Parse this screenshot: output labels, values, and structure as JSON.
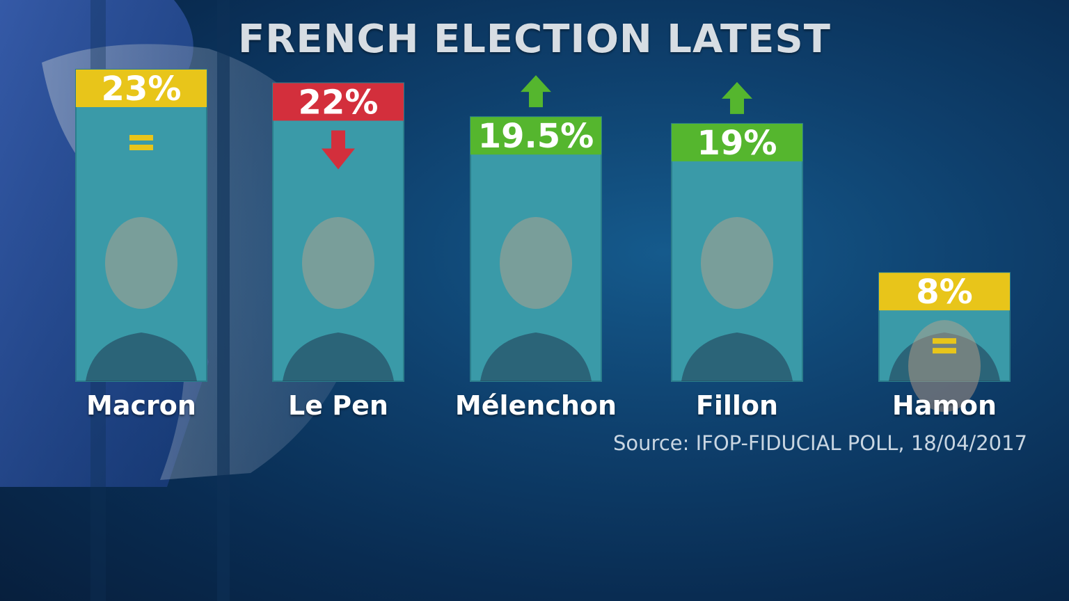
{
  "title": "FRENCH ELECTION LATEST",
  "source": "Source:  IFOP-FIDUCIAL POLL, 18/04/2017",
  "colors": {
    "bar_fill": "#3a9aa8",
    "yellow": "#e8c51a",
    "red": "#d32f3c",
    "green": "#55b62e",
    "label_text": "#ffffff",
    "background": "#0e3f6c"
  },
  "chart_data": {
    "type": "bar",
    "title": "FRENCH ELECTION LATEST",
    "categories": [
      "Macron",
      "Le Pen",
      "Mélenchon",
      "Fillon",
      "Hamon"
    ],
    "values": [
      23,
      22,
      19.5,
      19,
      8
    ],
    "value_labels": [
      "23%",
      "22%",
      "19.5%",
      "19%",
      "8%"
    ],
    "trend": [
      "unchanged",
      "down",
      "up",
      "up",
      "unchanged"
    ],
    "trend_icons": [
      "equals-icon",
      "down-arrow-icon",
      "up-arrow-icon",
      "up-arrow-icon",
      "equals-icon"
    ],
    "label_colors": [
      "#e8c51a",
      "#d32f3c",
      "#55b62e",
      "#55b62e",
      "#e8c51a"
    ],
    "ylim": [
      0,
      23
    ],
    "xlabel": "",
    "ylabel": "",
    "grid": false,
    "legend": "none"
  }
}
